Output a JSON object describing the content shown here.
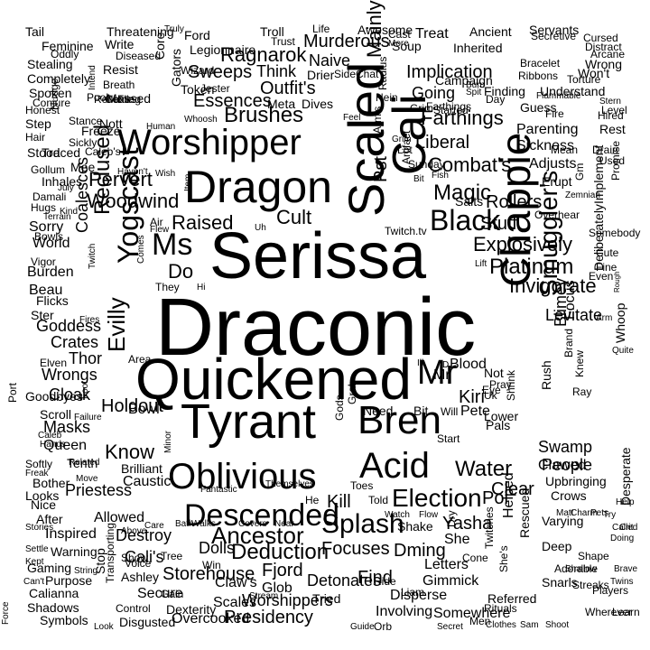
{
  "colors": {
    "background": "#ffffff",
    "text": "#000000"
  },
  "words": [
    "Draconic",
    "Serissa",
    "Quickened",
    "Tyrant",
    "Oblivious",
    "Scaled",
    "Dragon",
    "Worshipper",
    "Cali",
    "Bren",
    "Acid",
    "Descended",
    "Chappie",
    "Mr",
    "Yogscast",
    "Splash",
    "Black",
    "Ms",
    "Election",
    "Ancestor",
    "Smuggler's",
    "Water",
    "Deduction",
    "Brushes",
    "Magic",
    "Farthings",
    "Combat's",
    "Liberal",
    "Platinum",
    "Invigorate",
    "Explosively",
    "Woodwind",
    "Raised",
    "Cult",
    "Do",
    "Evilly",
    "Reclused",
    "Holdout",
    "Know",
    "Storehouse",
    "Outfit's",
    "Essences",
    "Ragnarok",
    "Murderous",
    "Implication",
    "Mainly",
    "Levitate",
    "Blimey",
    "Clear",
    "Yasha",
    "Kiri",
    "Focuses",
    "Detonates",
    "Worshippers",
    "Presidency",
    "Fjord",
    "Find",
    "Dming",
    "Poi",
    "Kill",
    "Crates",
    "Goddess",
    "Thor",
    "Wrongs",
    "Cloak",
    "Coalesces",
    "Pervert",
    "Rollers",
    "Stuff",
    "People",
    "Swamp",
    "Sweeps",
    "Naive",
    "Going",
    "Finding",
    "Understand",
    "Parenting",
    "Sickness",
    "Adjusts",
    "Erupt",
    "Implement",
    "Deliberately",
    "Whoop",
    "Focus",
    "Rush",
    "Pete",
    "Blood",
    "Not",
    "Pst",
    "Bowl",
    "Masks",
    "Queen",
    "Tenth",
    "Priestess",
    "Allowed",
    "Destroy",
    "Dolls",
    "Cali's",
    "Claw's",
    "Glob",
    "Scales",
    "Secure",
    "Dexterity",
    "Overcooked",
    "Involving",
    "Somewhere",
    "Referred",
    "Snarls",
    "Players",
    "Wherever",
    "Letters",
    "Gimmick",
    "Disperse",
    "She",
    "Shake",
    "Helped",
    "Rescued",
    "Twitches",
    "She's",
    "Upbringing",
    "Crows",
    "Clawed",
    "Varying",
    "Deep",
    "Shape",
    "Adorable",
    "Streaks",
    "Learn",
    "Brilliant",
    "Caustic",
    "They",
    "Ford",
    "Legionnaire",
    "Troll",
    "Trust",
    "Soup",
    "Inherited",
    "Secretive",
    "Torture",
    "Campaign",
    "Bracelet",
    "Ribbons",
    "Started",
    "Farthings",
    "Grim",
    "Guess",
    "Fire",
    "Sunday",
    "Fish",
    "Salts",
    "Gm",
    "Promise",
    "Somebody",
    "Cute",
    "Fine",
    "Write",
    "Diseased",
    "Resist",
    "Breath",
    "Messed",
    "Reflex",
    "Fling",
    "Nott",
    "Freeze",
    "Traced",
    "Caleb's",
    "Mee",
    "Gollum",
    "Inhales",
    "Damali",
    "Hugs",
    "Sorry",
    "Bowls",
    "World",
    "Vigor",
    "Burden",
    "Beau",
    "Flicks",
    "Ster",
    "Elven",
    "Port",
    "Goodbyes",
    "Scroll",
    "Softly",
    "Freak",
    "Bother",
    "Looks",
    "Nice",
    "After",
    "Inspired",
    "Warning",
    "Gaming",
    "Purpose",
    "Calianna",
    "Shadows",
    "Symbols",
    "Disgusted",
    "Control",
    "Ashley",
    "Show",
    "Voice",
    "Win",
    "Tried",
    "Stop",
    "Transporting",
    "Gain",
    "Stream",
    "Tail",
    "Threatening",
    "Feminine",
    "Stealing",
    "Completely",
    "Spoken",
    "Honest",
    "Step",
    "Hair",
    "Stood",
    "Oddly",
    "Conjure",
    "Pool",
    "Come",
    "Core",
    "Gators",
    "Wizard",
    "Token",
    "Jester",
    "Meta",
    "Dives",
    "Think",
    "Drier",
    "Side",
    "Chat",
    "Life",
    "Awesome",
    "Cast",
    "Treat",
    "Ancient",
    "Servants",
    "Cursed",
    "Distract",
    "Arcane",
    "Wrong",
    "Won't",
    "Mean",
    "Drain",
    "Used",
    "Rest",
    "Hired",
    "Stern",
    "Level",
    "Flammable",
    "Day",
    "Nein",
    "Radius",
    "Feel",
    "Arm's",
    "Lot",
    "Artifact",
    "Twitch.tv",
    "Overhear",
    "Zemnian",
    "Lift",
    "Even",
    "Rough",
    "Arm",
    "Ray",
    "Knew",
    "Brand",
    "Eye",
    "Pray",
    "Uk",
    "Grab",
    "Need",
    "Bit",
    "Will",
    "Shrink",
    "Lower",
    "Pals",
    "Gods",
    "Start",
    "Toes",
    "Told",
    "Dry",
    "Watch",
    "Flow",
    "Cone",
    "Hide",
    "Liam",
    "Orb",
    "Men",
    "Rituals",
    "Clothes",
    "Sam",
    "Shoot",
    "Secret",
    "Guide",
    "Look",
    "Force",
    "Can't",
    "String",
    "Kept",
    "Settle",
    "Stories",
    "Above",
    "Tree",
    "Care",
    "Bath",
    "Walks",
    "Covers",
    "Near",
    "He",
    "Themselves",
    "Fantastic",
    "Minor",
    "Area",
    "Failure",
    "Caleb",
    "Hands",
    "Foot",
    "Related",
    "Move",
    "Item",
    "Air",
    "Flew",
    "Uh",
    "Hi",
    "Comes",
    "Fires",
    "Wish",
    "Haven't",
    "Human",
    "Whoosh",
    "Nudge",
    "Stance",
    "Sickly",
    "Kind",
    "Twitch",
    "Terrain",
    "July",
    "Intend",
    "Truly",
    "More",
    "Burn",
    "Spit",
    "Help",
    "Try",
    "Crit",
    "Doing",
    "Brave",
    "Twins",
    "Shallow",
    "Matt",
    "Charm",
    "Pets",
    "Called",
    "Desperate",
    "Mr",
    "D",
    "Ill",
    "Quite",
    "Grim",
    "Bit"
  ]
}
